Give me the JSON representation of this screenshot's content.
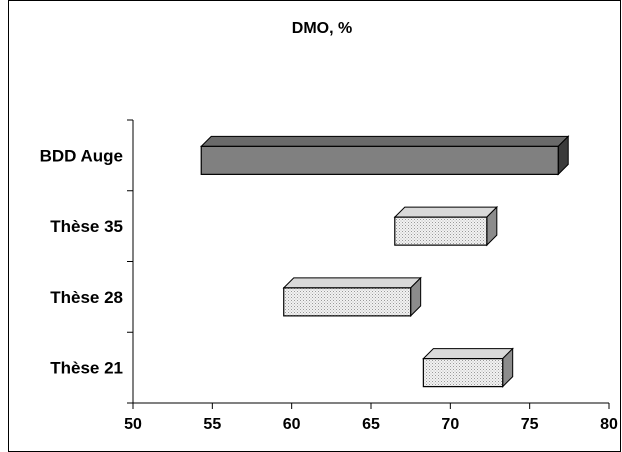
{
  "chart_data": {
    "type": "bar",
    "subtype": "floating-range-horizontal-3d",
    "title": "DMO, %",
    "xlabel": "",
    "ylabel": "",
    "xlim": [
      50,
      80
    ],
    "x_ticks": [
      "50",
      "55",
      "60",
      "65",
      "70",
      "75",
      "80"
    ],
    "categories": [
      "BDD Auge",
      "Thèse 35",
      "Thèse 28",
      "Thèse 21"
    ],
    "ranges": [
      {
        "category": "BDD Auge",
        "min": 54.3,
        "max": 76.8,
        "style": "solid-dark"
      },
      {
        "category": "Thèse 35",
        "min": 66.5,
        "max": 72.3,
        "style": "dotted-light"
      },
      {
        "category": "Thèse 28",
        "min": 59.5,
        "max": 67.5,
        "style": "dotted-light"
      },
      {
        "category": "Thèse 21",
        "min": 68.3,
        "max": 73.3,
        "style": "dotted-light"
      }
    ],
    "grid": false,
    "legend": "none",
    "colors": {
      "solid_front": "#808080",
      "solid_top": "#6a6a6a",
      "solid_side": "#3a3a3a",
      "light_front": "#eeeeee",
      "light_top": "#d9d9d9",
      "light_side": "#8c8c8c",
      "outline": "#000000"
    }
  }
}
